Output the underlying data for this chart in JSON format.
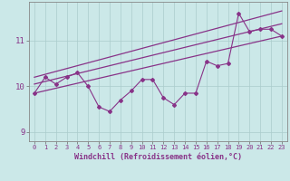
{
  "xlabel": "Windchill (Refroidissement éolien,°C)",
  "background_color": "#cbe8e8",
  "line_color": "#883388",
  "grid_color": "#aacccc",
  "x_values": [
    0,
    1,
    2,
    3,
    4,
    5,
    6,
    7,
    8,
    9,
    10,
    11,
    12,
    13,
    14,
    15,
    16,
    17,
    18,
    19,
    20,
    21,
    22,
    23
  ],
  "y_data": [
    9.85,
    10.2,
    10.05,
    10.2,
    10.3,
    10.0,
    9.55,
    9.45,
    9.7,
    9.9,
    10.15,
    10.15,
    9.75,
    9.6,
    9.85,
    9.85,
    10.55,
    10.45,
    10.5,
    11.6,
    11.2,
    11.25,
    11.25,
    11.1
  ],
  "upper_line": [
    10.2,
    11.65
  ],
  "lower_line": [
    9.85,
    11.1
  ],
  "middle_line": [
    10.05,
    11.37
  ],
  "ylim": [
    8.8,
    11.85
  ],
  "xlim": [
    -0.5,
    23.5
  ],
  "yticks": [
    9,
    10,
    11
  ],
  "xticks": [
    0,
    1,
    2,
    3,
    4,
    5,
    6,
    7,
    8,
    9,
    10,
    11,
    12,
    13,
    14,
    15,
    16,
    17,
    18,
    19,
    20,
    21,
    22,
    23
  ],
  "tick_fontsize": 5.0,
  "xlabel_fontsize": 6.0,
  "marker": "D",
  "marker_size": 2.0,
  "line_width": 0.8
}
